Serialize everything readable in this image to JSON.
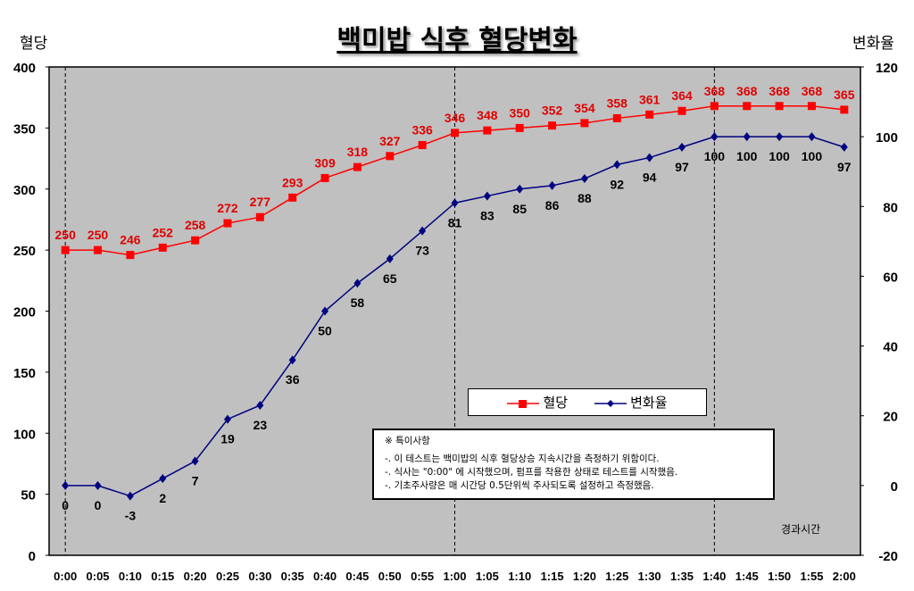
{
  "chart_data": {
    "type": "line",
    "title": "백미밥 식후 혈당변화",
    "ylabel": "혈당",
    "y2label": "변화율",
    "xlabel": "경과시간",
    "ylim": [
      0,
      400
    ],
    "y2lim": [
      -20,
      120
    ],
    "yticks": [
      0,
      50,
      100,
      150,
      200,
      250,
      300,
      350,
      400
    ],
    "y2ticks": [
      -20,
      0,
      20,
      40,
      60,
      80,
      100,
      120
    ],
    "categories": [
      "0:00",
      "0:05",
      "0:10",
      "0:15",
      "0:20",
      "0:25",
      "0:30",
      "0:35",
      "0:40",
      "0:45",
      "0:50",
      "0:55",
      "1:00",
      "1:05",
      "1:10",
      "1:15",
      "1:20",
      "1:25",
      "1:30",
      "1:35",
      "1:40",
      "1:45",
      "1:50",
      "1:55",
      "2:00"
    ],
    "series": [
      {
        "name": "혈당",
        "axis": "left",
        "color": "#ff0000",
        "marker": "square",
        "values": [
          250,
          250,
          246,
          252,
          258,
          272,
          277,
          293,
          309,
          318,
          327,
          336,
          346,
          348,
          350,
          352,
          354,
          358,
          361,
          364,
          368,
          368,
          368,
          368,
          365
        ]
      },
      {
        "name": "변화율",
        "axis": "right",
        "color": "#000080",
        "marker": "diamond",
        "values": [
          0,
          0,
          -3,
          2,
          7,
          19,
          23,
          36,
          50,
          58,
          65,
          73,
          81,
          83,
          85,
          86,
          88,
          92,
          94,
          97,
          100,
          100,
          100,
          100,
          97
        ]
      }
    ],
    "reference_lines": [
      "0:00",
      "1:00",
      "1:40"
    ],
    "legend": "center-right",
    "grid": false
  },
  "notes": {
    "heading": "※ 특이사항",
    "lines": [
      "-. 이 테스트는 백미밥의 식후 혈당상승 지속시간을 측정하기 위함이다.",
      "-. 식사는 \"0:00\" 에 시작했으며, 펌프를 착용한 상태로 테스트를 시작했음.",
      "-. 기초주사량은 매 시간당 0.5단위씩 주사되도록 설정하고 측정했음."
    ]
  },
  "colors": {
    "plot_bg": "#c0c0c0"
  }
}
